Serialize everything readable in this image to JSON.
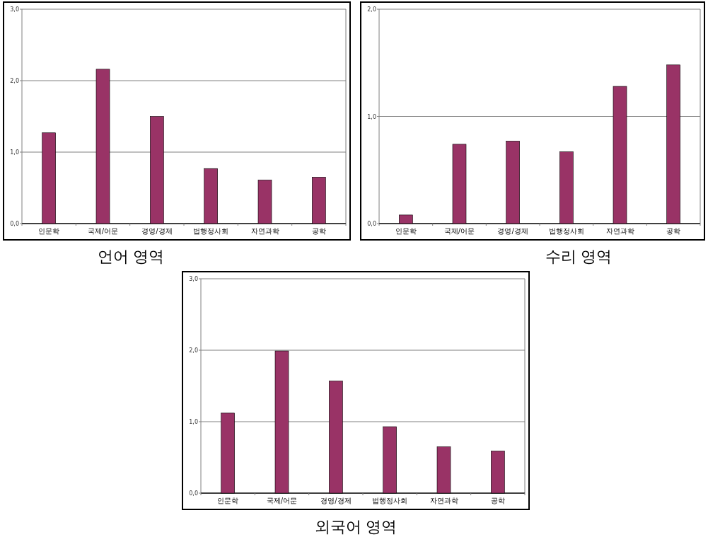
{
  "chart_data": [
    {
      "type": "bar",
      "title": "언어 영역",
      "categories": [
        "인문학",
        "국제/어문",
        "경영/경제",
        "법행정사회",
        "자연과학",
        "공학"
      ],
      "values": [
        1.27,
        2.16,
        1.5,
        0.77,
        0.61,
        0.65
      ],
      "color": "#993366",
      "ylim": [
        0,
        3
      ],
      "yticks": [
        {
          "value": 0,
          "label": "0,0"
        },
        {
          "value": 1,
          "label": "1,0"
        },
        {
          "value": 2,
          "label": "2,0"
        },
        {
          "value": 3,
          "label": "3,0"
        }
      ],
      "grid": "y"
    },
    {
      "type": "bar",
      "title": "수리 영역",
      "categories": [
        "인문학",
        "국제/어문",
        "경영/경제",
        "법행정사회",
        "자연과학",
        "공학"
      ],
      "values": [
        0.08,
        0.74,
        0.77,
        0.67,
        1.28,
        1.48
      ],
      "color": "#993366",
      "ylim": [
        0,
        2
      ],
      "yticks": [
        {
          "value": 0,
          "label": "0,0"
        },
        {
          "value": 1,
          "label": "1,0"
        },
        {
          "value": 2,
          "label": "2,0"
        }
      ],
      "grid": "y"
    },
    {
      "type": "bar",
      "title": "외국어 영역",
      "categories": [
        "인문학",
        "국제/어문",
        "경영/경제",
        "법행정사회",
        "자연과학",
        "공학"
      ],
      "values": [
        1.12,
        1.99,
        1.57,
        0.93,
        0.65,
        0.59
      ],
      "color": "#993366",
      "ylim": [
        0,
        3
      ],
      "yticks": [
        {
          "value": 0,
          "label": "0,0"
        },
        {
          "value": 1,
          "label": "1,0"
        },
        {
          "value": 2,
          "label": "2,0"
        },
        {
          "value": 3,
          "label": "3,0"
        }
      ],
      "grid": "y"
    }
  ]
}
